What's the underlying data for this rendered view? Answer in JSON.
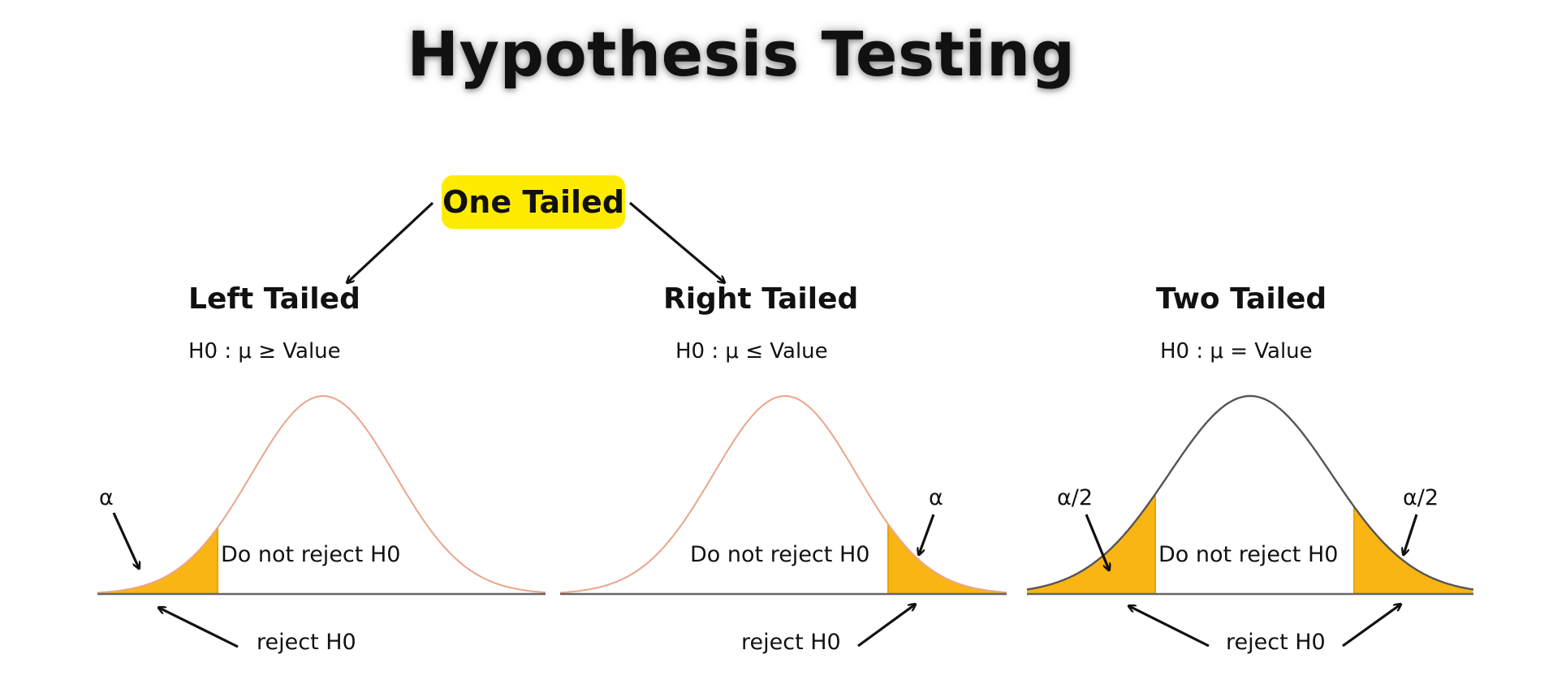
{
  "title": "Hypothesis Testing",
  "one_tailed_label": "One Tailed",
  "panels": [
    {
      "heading": "Left Tailed",
      "hypothesis": "H0 : μ  ≥ Value",
      "alpha_label": "α",
      "do_not_reject_label": "Do not reject H0",
      "reject_label": "reject H0"
    },
    {
      "heading": "Right Tailed",
      "hypothesis": "H0 : μ ≤ Value",
      "alpha_label": "α",
      "do_not_reject_label": "Do not reject H0",
      "reject_label": "reject H0"
    },
    {
      "heading": "Two Tailed",
      "hypothesis": "H0 : μ = Value",
      "alpha_left_label": "α/2",
      "alpha_right_label": "α/2",
      "do_not_reject_label": "Do not reject H0",
      "reject_label": "reject H0"
    }
  ],
  "colors": {
    "pill": "#ffeb00",
    "rejection_fill": "#f9b514",
    "curve_one_tailed": "#eaa58a",
    "curve_two_tailed": "#555555",
    "baseline": "#666666",
    "arrow": "#111111"
  }
}
